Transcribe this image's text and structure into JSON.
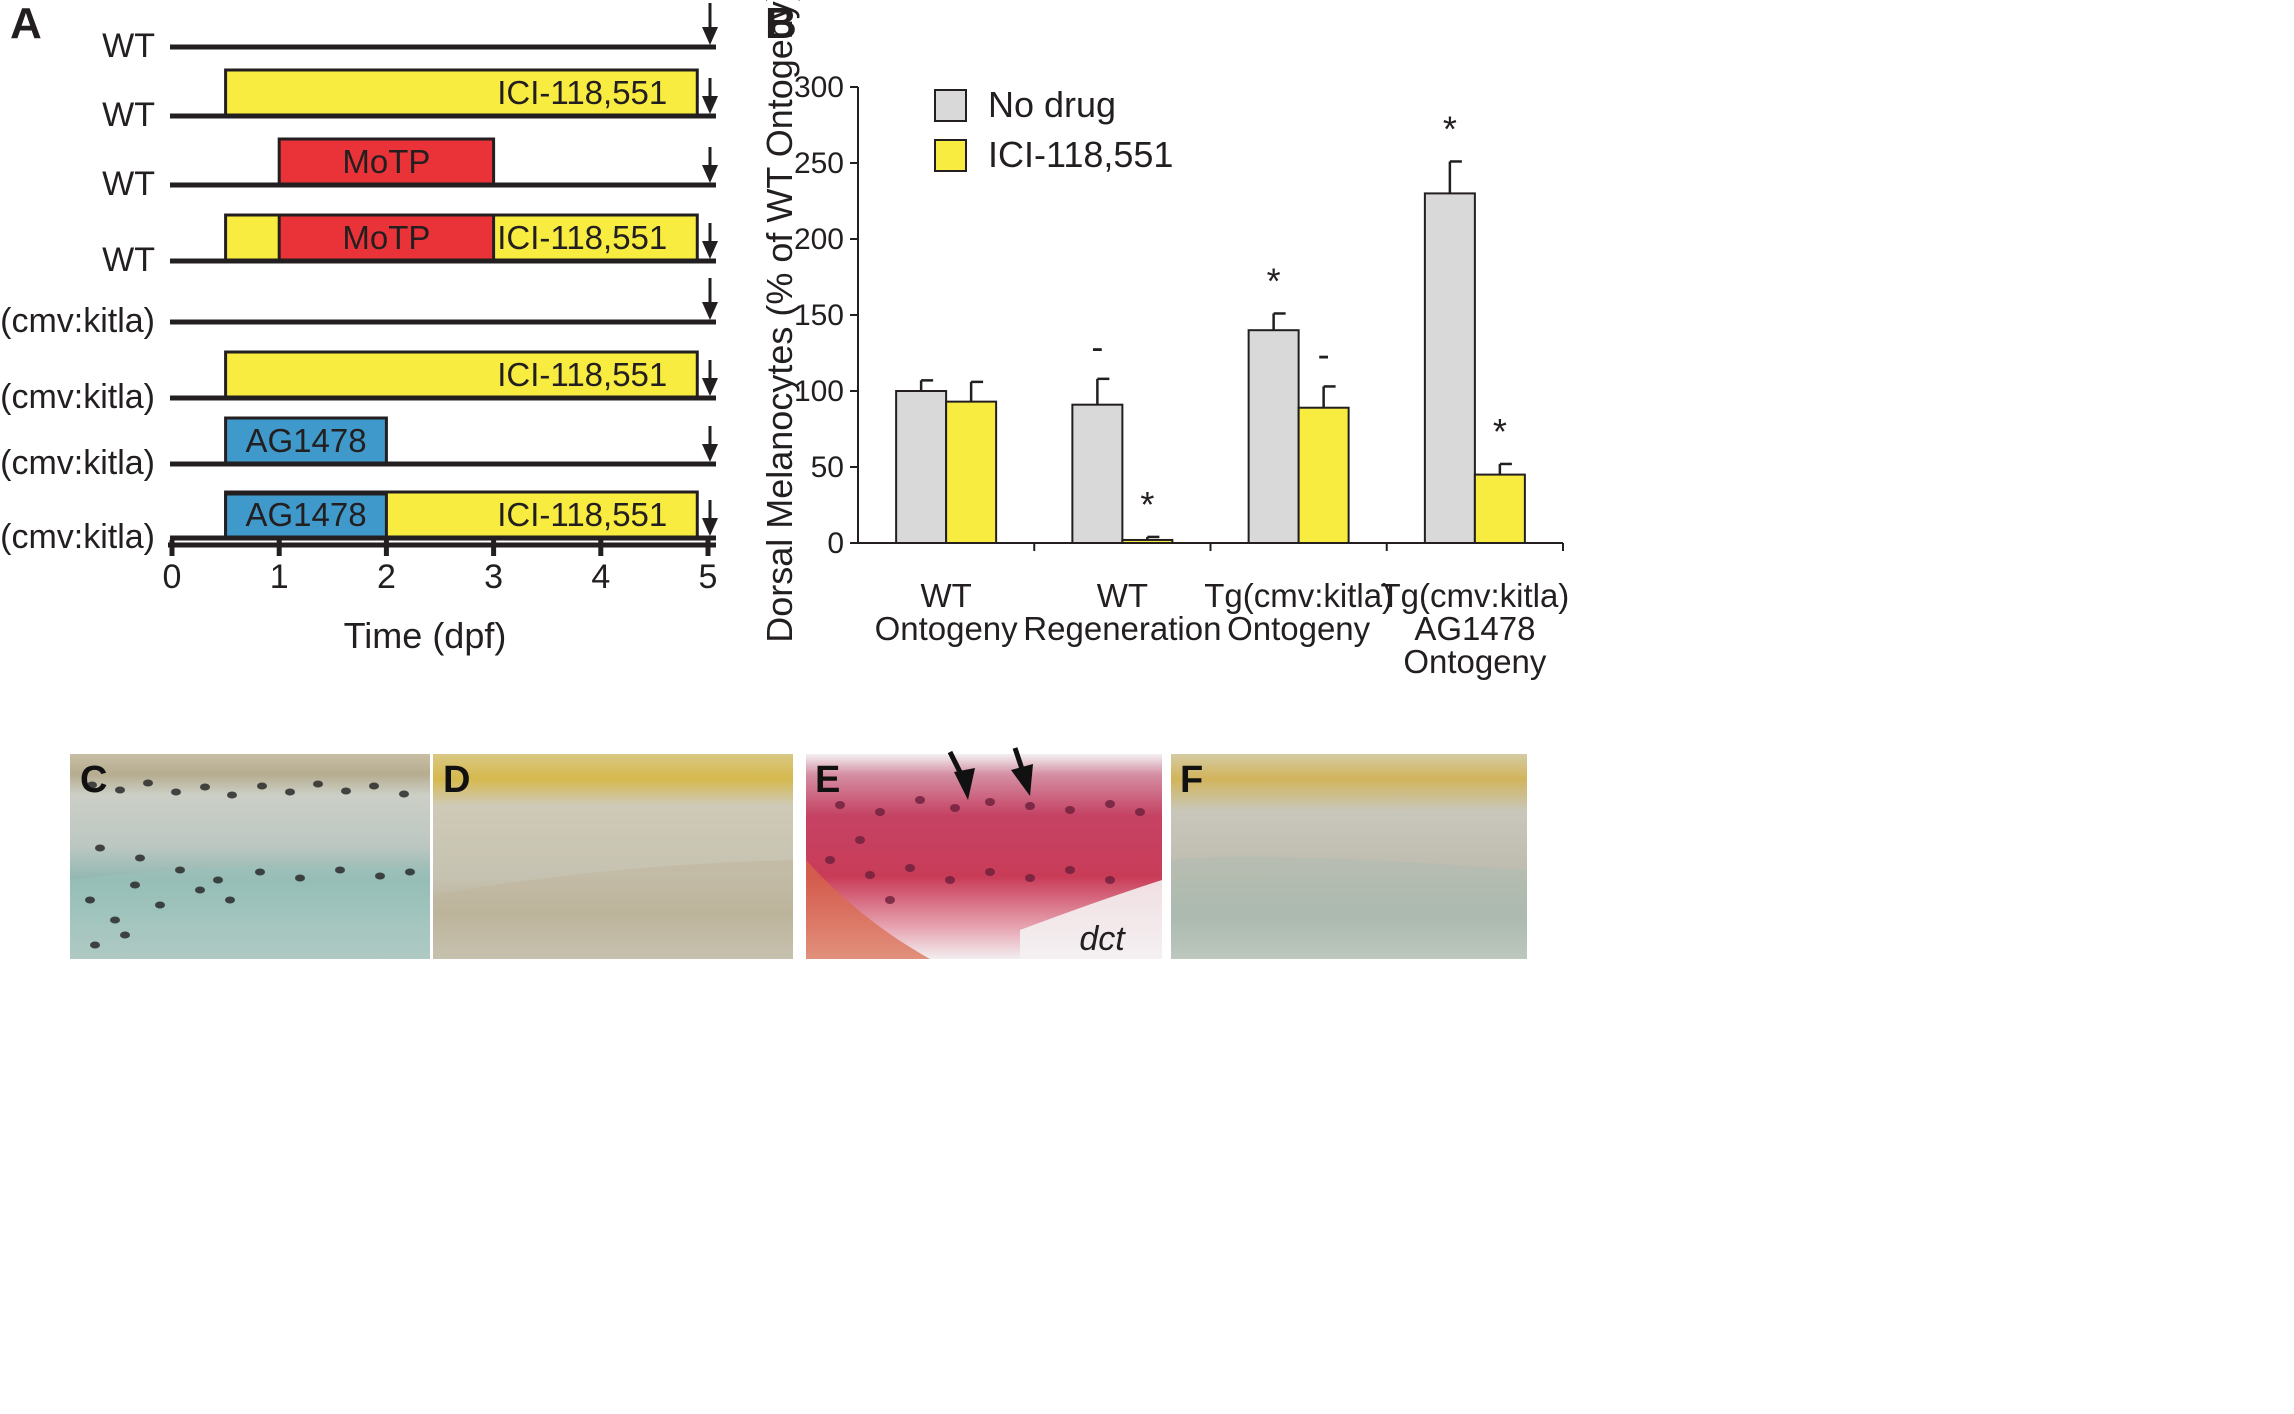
{
  "panels": {
    "A": {
      "letter": "A",
      "xlabel": "Time (dpf)",
      "ticks": [
        "0",
        "1",
        "2",
        "3",
        "4",
        "5"
      ],
      "xlim": [
        0,
        5
      ],
      "colors": {
        "ICI-118,551": "#f7ec3f",
        "MoTP": "#ea3338",
        "AG1478": "#3f9acb",
        "line": "#231f20"
      },
      "rows": [
        {
          "label": "WT",
          "bars": []
        },
        {
          "label": "WT",
          "bars": [
            {
              "name": "ICI-118,551",
              "start": 0.5,
              "end": 4.9,
              "layer": "full"
            }
          ]
        },
        {
          "label": "WT",
          "bars": [
            {
              "name": "MoTP",
              "start": 1,
              "end": 3,
              "layer": "full"
            }
          ]
        },
        {
          "label": "WT",
          "bars": [
            {
              "name": "ICI-118,551",
              "start": 0.5,
              "end": 4.9,
              "layer": "back"
            },
            {
              "name": "MoTP",
              "start": 1,
              "end": 3,
              "layer": "full"
            }
          ]
        },
        {
          "label": "Tg(cmv:kitla)",
          "bars": []
        },
        {
          "label": "Tg(cmv:kitla)",
          "bars": [
            {
              "name": "ICI-118,551",
              "start": 0.5,
              "end": 4.9,
              "layer": "full"
            }
          ]
        },
        {
          "label": "Tg(cmv:kitla)",
          "bars": [
            {
              "name": "AG1478",
              "start": 0.5,
              "end": 2,
              "layer": "full"
            }
          ]
        },
        {
          "label": "Tg(cmv:kitla)",
          "bars": [
            {
              "name": "ICI-118,551",
              "start": 0.5,
              "end": 4.9,
              "layer": "full"
            },
            {
              "name": "AG1478",
              "start": 0.5,
              "end": 2,
              "layer": "front"
            }
          ]
        }
      ]
    },
    "B": {
      "letter": "B"
    },
    "C": {
      "letter": "C"
    },
    "D": {
      "letter": "D"
    },
    "E": {
      "letter": "E",
      "label": "dct"
    },
    "F": {
      "letter": "F"
    }
  },
  "chart_data": {
    "type": "bar",
    "ylabel": "Dorsal Melanocytes (% of WT Ontogeny)",
    "ylim": [
      0,
      300
    ],
    "yticks": [
      "0",
      "50",
      "100",
      "150",
      "200",
      "250",
      "300"
    ],
    "categories": [
      [
        "WT",
        "Ontogeny"
      ],
      [
        "WT",
        "Regeneration"
      ],
      [
        "Tg(cmv:kitla)",
        "Ontogeny"
      ],
      [
        "Tg(cmv:kitla)",
        "AG1478",
        "Ontogeny"
      ]
    ],
    "series": [
      {
        "name": "No drug",
        "color": "#d9d9d9",
        "values": [
          100,
          91,
          140,
          230
        ],
        "errors": [
          7,
          17,
          11,
          21
        ],
        "marks": [
          "",
          "-",
          "*",
          "*"
        ]
      },
      {
        "name": "ICI-118,551",
        "color": "#f7ec3f",
        "values": [
          93,
          2,
          89,
          45
        ],
        "errors": [
          13,
          2,
          14,
          7
        ],
        "marks": [
          "",
          "*",
          "-",
          "*"
        ]
      }
    ],
    "legend_position": "top-left",
    "grid": false
  }
}
